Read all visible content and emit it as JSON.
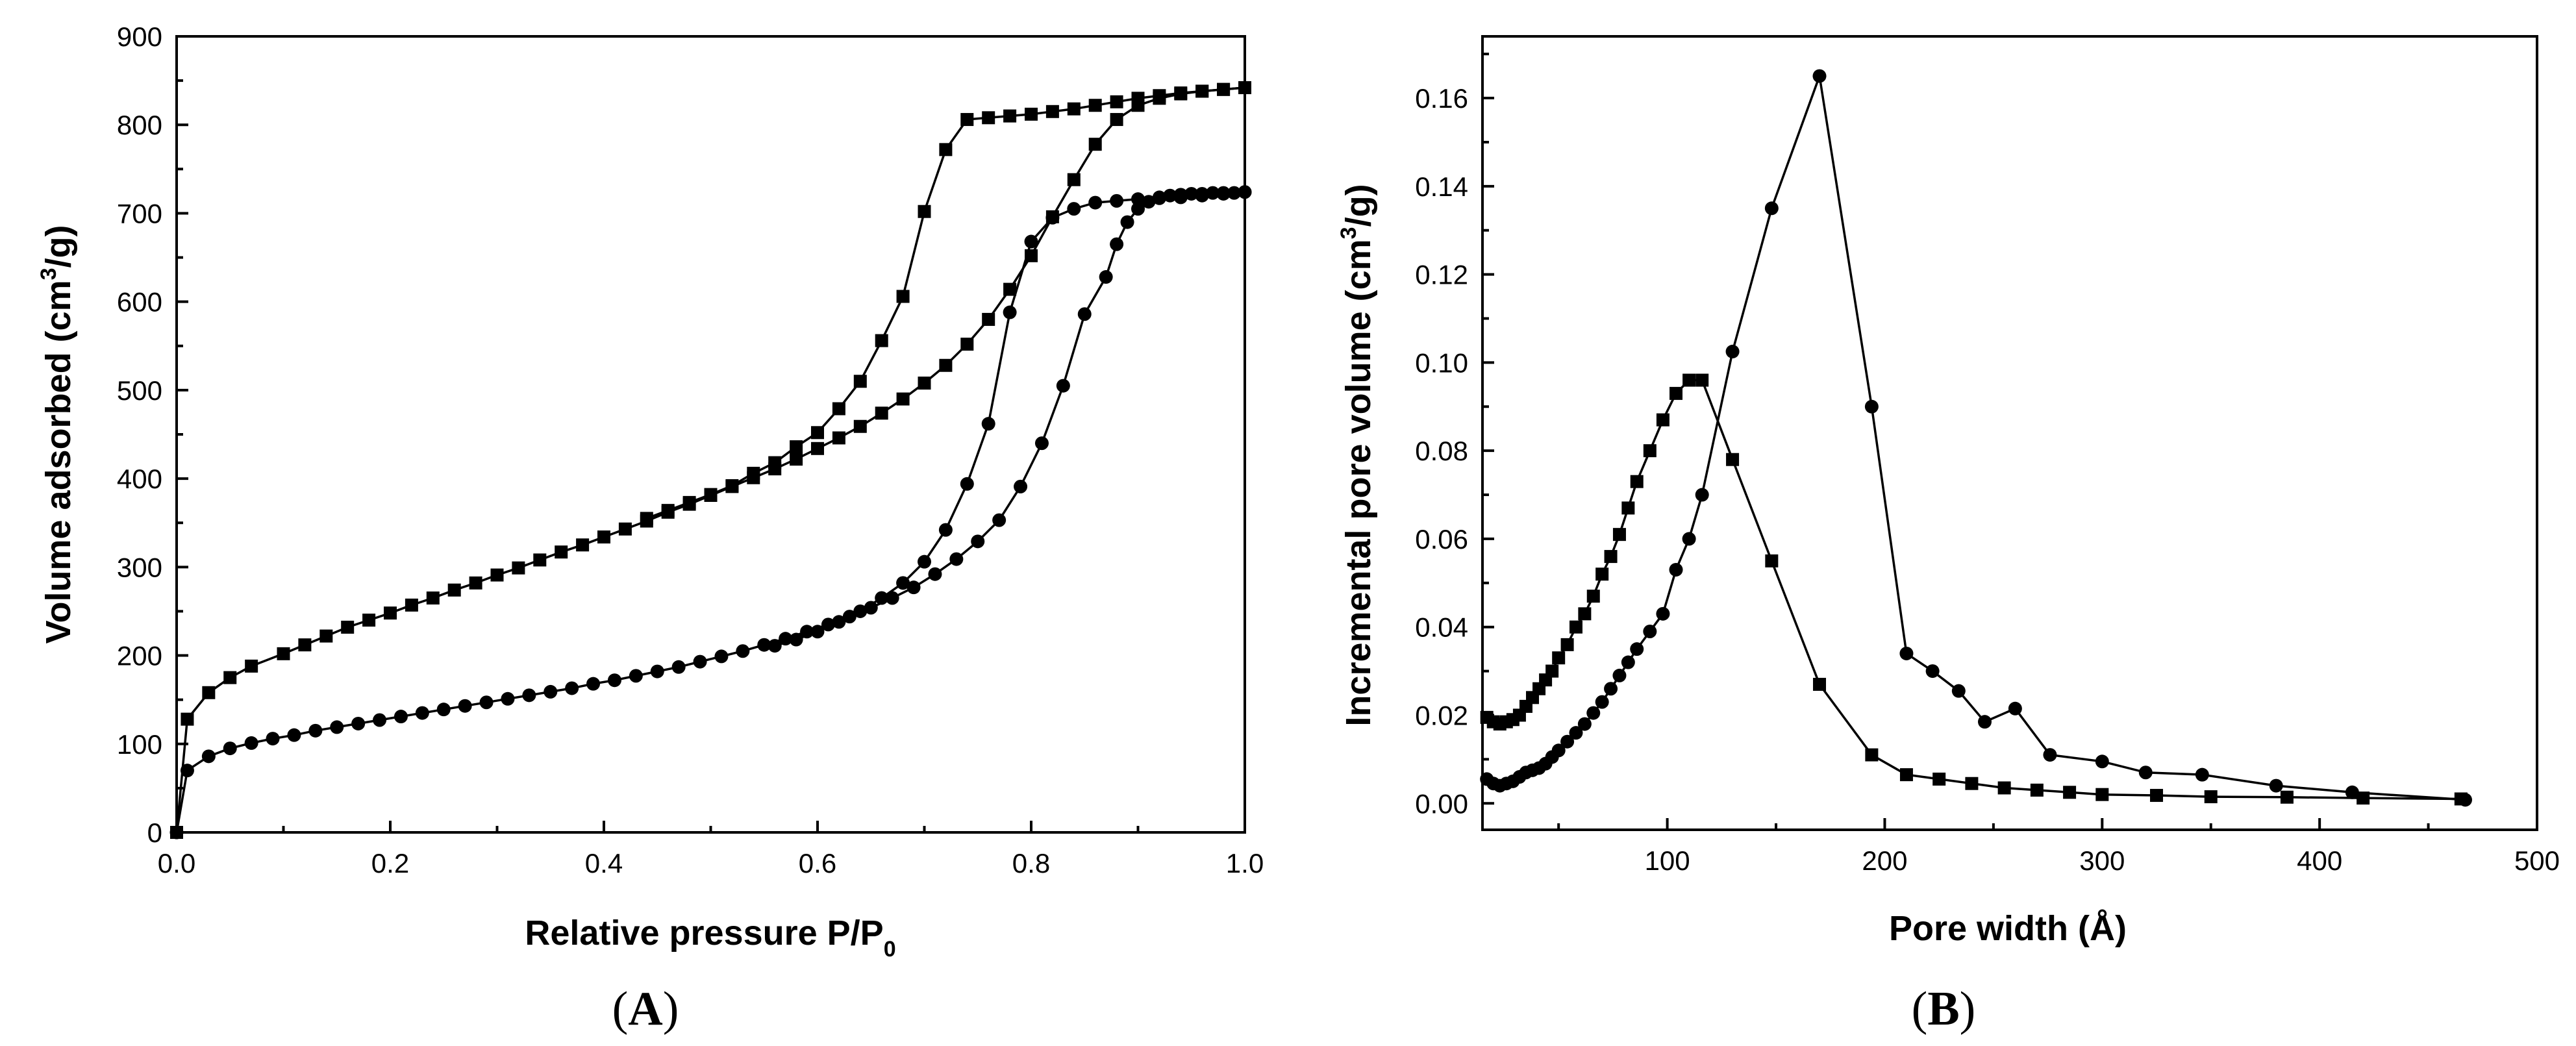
{
  "chart_data": [
    {
      "panel": "A",
      "type": "scatter",
      "panel_label": {
        "open": "(",
        "letter": "A",
        "close": ")"
      },
      "xlabel": {
        "main": "Relative pressure P/P",
        "sub": "0"
      },
      "ylabel": {
        "pre": "Volume adsorbed (cm",
        "sup": "3",
        "post": "/g)"
      },
      "xlim": [
        0.0,
        1.0
      ],
      "ylim": [
        0,
        900
      ],
      "xticks": [
        0.0,
        0.2,
        0.4,
        0.6,
        0.8,
        1.0
      ],
      "xtick_labels": [
        "0.0",
        "0.2",
        "0.4",
        "0.6",
        "0.8",
        "1.0"
      ],
      "yticks": [
        0,
        100,
        200,
        300,
        400,
        500,
        600,
        700,
        800,
        900
      ],
      "ytick_labels": [
        "0",
        "100",
        "200",
        "300",
        "400",
        "500",
        "600",
        "700",
        "800",
        "900"
      ],
      "series": [
        {
          "name": "squares-adsorption",
          "marker": "square",
          "x": [
            0.0,
            0.01,
            0.03,
            0.05,
            0.07,
            0.1,
            0.12,
            0.14,
            0.16,
            0.18,
            0.2,
            0.22,
            0.24,
            0.26,
            0.28,
            0.3,
            0.32,
            0.34,
            0.36,
            0.38,
            0.4,
            0.42,
            0.44,
            0.46,
            0.48,
            0.5,
            0.52,
            0.54,
            0.56,
            0.58,
            0.6,
            0.62,
            0.64,
            0.66,
            0.68,
            0.7,
            0.72,
            0.74,
            0.76,
            0.78,
            0.8,
            0.82,
            0.84,
            0.86,
            0.88,
            0.9,
            0.92,
            0.94,
            0.96,
            0.98,
            1.0
          ],
          "y": [
            0,
            128,
            158,
            175,
            188,
            202,
            212,
            222,
            232,
            240,
            248,
            257,
            265,
            274,
            282,
            291,
            299,
            308,
            317,
            325,
            334,
            343,
            352,
            362,
            371,
            381,
            391,
            401,
            411,
            422,
            434,
            446,
            459,
            474,
            490,
            508,
            528,
            552,
            580,
            614,
            652,
            696,
            738,
            778,
            806,
            822,
            830,
            835,
            838,
            840,
            842
          ]
        },
        {
          "name": "squares-desorption",
          "marker": "square",
          "x": [
            1.0,
            0.98,
            0.96,
            0.94,
            0.92,
            0.9,
            0.88,
            0.86,
            0.84,
            0.82,
            0.8,
            0.78,
            0.76,
            0.74,
            0.72,
            0.7,
            0.68,
            0.66,
            0.64,
            0.62,
            0.6,
            0.58,
            0.56,
            0.54,
            0.52,
            0.5,
            0.48,
            0.46,
            0.44
          ],
          "y": [
            842,
            840,
            838,
            836,
            833,
            830,
            826,
            822,
            818,
            815,
            812,
            810,
            808,
            806,
            772,
            702,
            606,
            556,
            510,
            479,
            452,
            436,
            418,
            406,
            392,
            382,
            373,
            364,
            355
          ]
        },
        {
          "name": "circles-adsorption",
          "marker": "circle",
          "x": [
            0.0,
            0.01,
            0.03,
            0.05,
            0.07,
            0.09,
            0.11,
            0.13,
            0.15,
            0.17,
            0.19,
            0.21,
            0.23,
            0.25,
            0.27,
            0.29,
            0.31,
            0.33,
            0.35,
            0.37,
            0.39,
            0.41,
            0.43,
            0.45,
            0.47,
            0.49,
            0.51,
            0.53,
            0.55,
            0.57,
            0.59,
            0.61,
            0.63,
            0.65,
            0.67,
            0.69,
            0.71,
            0.73,
            0.75,
            0.77,
            0.79,
            0.81,
            0.83,
            0.85,
            0.87,
            0.88,
            0.89,
            0.9,
            0.91,
            0.92,
            0.93,
            0.94,
            0.95,
            0.96,
            0.97,
            0.98,
            0.99,
            1.0
          ],
          "y": [
            0,
            70,
            86,
            95,
            101,
            106,
            110,
            115,
            119,
            123,
            127,
            131,
            135,
            139,
            143,
            147,
            151,
            155,
            159,
            163,
            168,
            172,
            177,
            182,
            187,
            193,
            199,
            205,
            212,
            219,
            227,
            235,
            244,
            254,
            265,
            277,
            292,
            309,
            329,
            353,
            391,
            440,
            505,
            586,
            628,
            665,
            690,
            705,
            713,
            718,
            720,
            721,
            722,
            722,
            723,
            723,
            723,
            724
          ]
        },
        {
          "name": "circles-desorption",
          "marker": "circle",
          "x": [
            1.0,
            0.98,
            0.96,
            0.94,
            0.92,
            0.9,
            0.88,
            0.86,
            0.84,
            0.82,
            0.8,
            0.78,
            0.76,
            0.74,
            0.72,
            0.7,
            0.68,
            0.66,
            0.64,
            0.62,
            0.6,
            0.58,
            0.56
          ],
          "y": [
            724,
            722,
            720,
            718,
            717,
            716,
            714,
            712,
            705,
            695,
            668,
            588,
            462,
            394,
            342,
            306,
            282,
            265,
            250,
            238,
            227,
            218,
            211
          ]
        }
      ]
    },
    {
      "panel": "B",
      "type": "line",
      "panel_label": {
        "open": "(",
        "letter": "B",
        "close": ")"
      },
      "xlabel": {
        "main": "Pore width (Å)"
      },
      "ylabel": {
        "pre": "Incremental pore volume (cm",
        "sup": "3",
        "post": "/g)"
      },
      "xlim": [
        15,
        500
      ],
      "ylim": [
        -0.006,
        0.174
      ],
      "xticks": [
        100,
        200,
        300,
        400,
        500
      ],
      "xtick_labels": [
        "100",
        "200",
        "300",
        "400",
        "500"
      ],
      "yticks": [
        0.0,
        0.02,
        0.04,
        0.06,
        0.08,
        0.1,
        0.12,
        0.14,
        0.16
      ],
      "ytick_labels": [
        "0.00",
        "0.02",
        "0.04",
        "0.06",
        "0.08",
        "0.10",
        "0.12",
        "0.14",
        "0.16"
      ],
      "series": [
        {
          "name": "squares",
          "marker": "square",
          "x": [
            17,
            20,
            23,
            26,
            29,
            32,
            35,
            38,
            41,
            44,
            47,
            50,
            54,
            58,
            62,
            66,
            70,
            74,
            78,
            82,
            86,
            92,
            98,
            104,
            110,
            116,
            130,
            148,
            170,
            194,
            210,
            225,
            240,
            255,
            270,
            285,
            300,
            325,
            350,
            385,
            420,
            465
          ],
          "y": [
            0.0195,
            0.0185,
            0.018,
            0.0185,
            0.019,
            0.02,
            0.022,
            0.024,
            0.026,
            0.028,
            0.03,
            0.033,
            0.036,
            0.04,
            0.043,
            0.047,
            0.052,
            0.056,
            0.061,
            0.067,
            0.073,
            0.08,
            0.087,
            0.093,
            0.096,
            0.096,
            0.078,
            0.055,
            0.027,
            0.011,
            0.0065,
            0.0055,
            0.0045,
            0.0035,
            0.003,
            0.0025,
            0.002,
            0.0018,
            0.0015,
            0.0014,
            0.0012,
            0.001
          ]
        },
        {
          "name": "circles",
          "marker": "circle",
          "x": [
            17,
            20,
            23,
            26,
            29,
            32,
            35,
            38,
            41,
            44,
            47,
            50,
            54,
            58,
            62,
            66,
            70,
            74,
            78,
            82,
            86,
            92,
            98,
            104,
            110,
            116,
            130,
            148,
            170,
            194,
            210,
            222,
            234,
            246,
            260,
            276,
            300,
            320,
            346,
            380,
            415,
            467
          ],
          "y": [
            0.0055,
            0.0045,
            0.004,
            0.0045,
            0.005,
            0.006,
            0.007,
            0.0075,
            0.008,
            0.009,
            0.0105,
            0.012,
            0.014,
            0.016,
            0.018,
            0.0205,
            0.023,
            0.026,
            0.029,
            0.032,
            0.035,
            0.039,
            0.043,
            0.053,
            0.06,
            0.07,
            0.1025,
            0.135,
            0.165,
            0.09,
            0.034,
            0.03,
            0.0255,
            0.0185,
            0.0215,
            0.011,
            0.0095,
            0.007,
            0.0065,
            0.004,
            0.0025,
            0.0008
          ]
        }
      ]
    }
  ]
}
